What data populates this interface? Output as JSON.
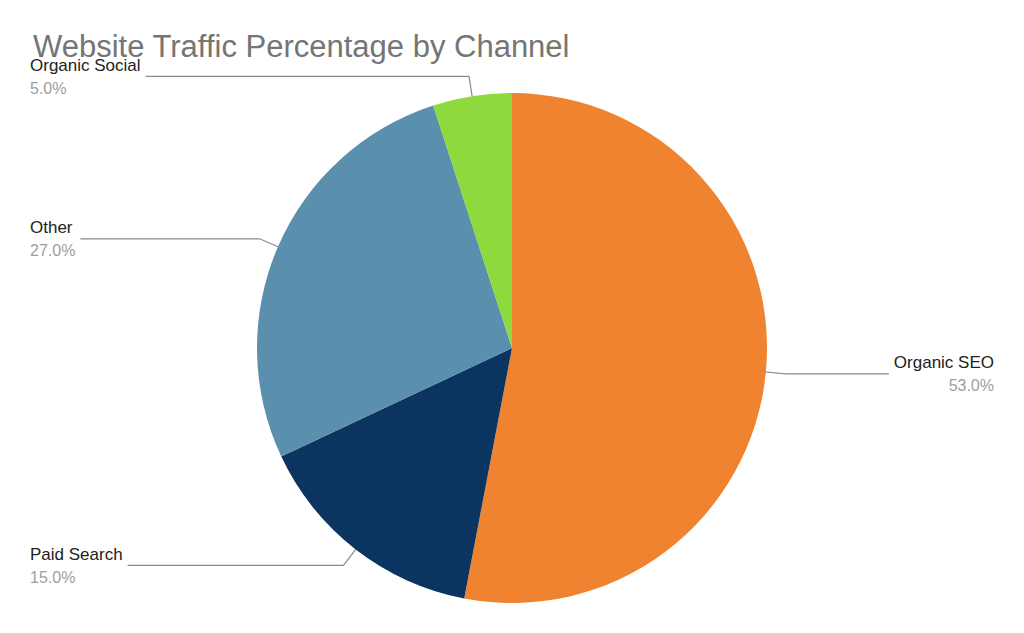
{
  "chart_data": {
    "type": "pie",
    "title": "Website Traffic Percentage by Channel",
    "categories": [
      "Organic SEO",
      "Paid Search",
      "Other",
      "Organic Social"
    ],
    "values": [
      53,
      15,
      27,
      5
    ],
    "value_labels": [
      "53.0%",
      "15.0%",
      "27.0%",
      "5.0%"
    ],
    "colors": [
      "#f0832f",
      "#0b3560",
      "#5a90ae",
      "#8dd93e"
    ],
    "data_labels": true
  }
}
